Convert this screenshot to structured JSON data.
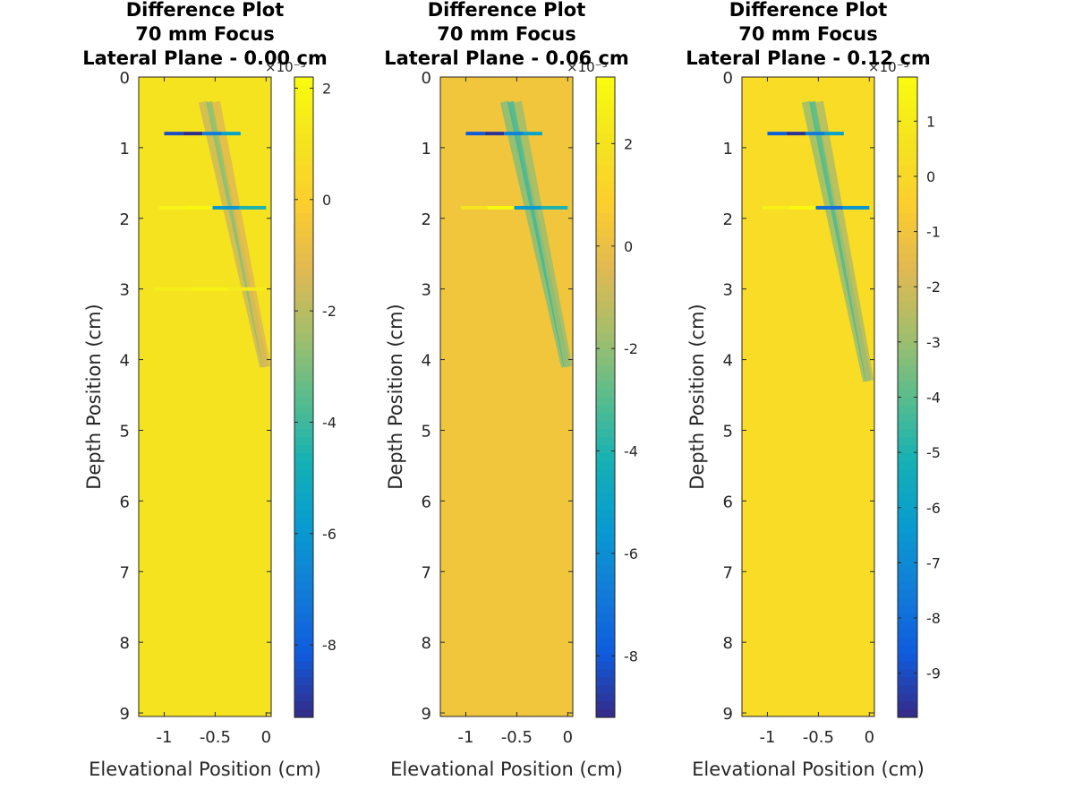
{
  "chart_data": [
    {
      "type": "heatmap",
      "title_lines": [
        "Difference Plot",
        "70 mm Focus",
        "Lateral Plane - 0.00 cm"
      ],
      "xlabel": "Elevational Position (cm)",
      "ylabel": "Depth Position (cm)",
      "xlim": [
        -1.25,
        0.05
      ],
      "ylim": [
        0,
        9.05
      ],
      "xticks": [
        -1,
        -0.5,
        0
      ],
      "xtick_labels": [
        "-1",
        "-0.5",
        "0"
      ],
      "yticks": [
        0,
        1,
        2,
        3,
        4,
        5,
        6,
        7,
        8,
        9
      ],
      "ytick_labels": [
        "0",
        "1",
        "2",
        "3",
        "4",
        "5",
        "6",
        "7",
        "8",
        "9"
      ],
      "colorbar": {
        "exponent_label": "×10⁻³",
        "clim": [
          -9.3,
          2.2
        ],
        "ticks": [
          2,
          0,
          -2,
          -4,
          -6,
          -8
        ],
        "tick_labels": [
          "2",
          "0",
          "-2",
          "-4",
          "-6",
          "-8"
        ]
      },
      "background_value": 1.0,
      "features": {
        "diagonal_band": {
          "x_start": -0.62,
          "y_start": 0.35,
          "x_end": -0.02,
          "y_end": 4.1,
          "value": -1.6
        },
        "streaks": [
          {
            "y": 0.8,
            "x_from": -1.0,
            "x_to": -0.25,
            "values": [
              -8.5,
              -9.2,
              -7.0,
              -5.5
            ]
          },
          {
            "y": 1.85,
            "x_from": -1.05,
            "x_to": 0.0,
            "values": [
              1.8,
              2.1,
              -6.0,
              -4.5
            ]
          },
          {
            "y": 3.0,
            "x_from": -1.1,
            "x_to": 0.0,
            "values": [
              1.5,
              1.8,
              1.4
            ]
          }
        ]
      }
    },
    {
      "type": "heatmap",
      "title_lines": [
        "Difference Plot",
        "70 mm Focus",
        "Lateral Plane - 0.06 cm"
      ],
      "xlabel": "Elevational Position (cm)",
      "ylabel": "Depth Position (cm)",
      "xlim": [
        -1.25,
        0.05
      ],
      "ylim": [
        0,
        9.05
      ],
      "xticks": [
        -1,
        -0.5,
        0
      ],
      "xtick_labels": [
        "-1",
        "-0.5",
        "0"
      ],
      "yticks": [
        0,
        1,
        2,
        3,
        4,
        5,
        6,
        7,
        8,
        9
      ],
      "ytick_labels": [
        "0",
        "1",
        "2",
        "3",
        "4",
        "5",
        "6",
        "7",
        "8",
        "9"
      ],
      "colorbar": {
        "exponent_label": "×10⁻³",
        "clim": [
          -9.2,
          3.3
        ],
        "ticks": [
          2,
          0,
          -2,
          -4,
          -6,
          -8
        ],
        "tick_labels": [
          "2",
          "0",
          "-2",
          "-4",
          "-6",
          "-8"
        ]
      },
      "background_value": 0.3,
      "features": {
        "diagonal_band": {
          "x_start": -0.62,
          "y_start": 0.35,
          "x_end": -0.02,
          "y_end": 4.1,
          "value": -2.2
        },
        "streaks": [
          {
            "y": 0.8,
            "x_from": -1.0,
            "x_to": -0.25,
            "values": [
              -8.0,
              -9.0,
              -6.5,
              -5.0
            ]
          },
          {
            "y": 1.85,
            "x_from": -1.05,
            "x_to": 0.0,
            "values": [
              2.0,
              3.2,
              -5.5,
              -4.0
            ]
          }
        ]
      }
    },
    {
      "type": "heatmap",
      "title_lines": [
        "Difference Plot",
        "70 mm Focus",
        "Lateral Plane - 0.12 cm"
      ],
      "xlabel": "Elevational Position (cm)",
      "ylabel": "Depth Position (cm)",
      "xlim": [
        -1.25,
        0.05
      ],
      "ylim": [
        0,
        9.05
      ],
      "xticks": [
        -1,
        -0.5,
        0
      ],
      "xtick_labels": [
        "-1",
        "-0.5",
        "0"
      ],
      "yticks": [
        0,
        1,
        2,
        3,
        4,
        5,
        6,
        7,
        8,
        9
      ],
      "ytick_labels": [
        "0",
        "1",
        "2",
        "3",
        "4",
        "5",
        "6",
        "7",
        "8",
        "9"
      ],
      "colorbar": {
        "exponent_label": "×10⁻³",
        "clim": [
          -9.8,
          1.8
        ],
        "ticks": [
          1,
          0,
          -1,
          -2,
          -3,
          -4,
          -5,
          -6,
          -7,
          -8,
          -9
        ],
        "tick_labels": [
          "1",
          "0",
          "-1",
          "-2",
          "-3",
          "-4",
          "-5",
          "-6",
          "-7",
          "-8",
          "-9"
        ]
      },
      "background_value": 0.2,
      "features": {
        "diagonal_band": {
          "x_start": -0.62,
          "y_start": 0.35,
          "x_end": -0.02,
          "y_end": 4.3,
          "value": -3.0
        },
        "streaks": [
          {
            "y": 0.8,
            "x_from": -1.0,
            "x_to": -0.25,
            "values": [
              -8.5,
              -9.6,
              -7.5,
              -6.0
            ]
          },
          {
            "y": 1.85,
            "x_from": -1.05,
            "x_to": 0.0,
            "values": [
              1.2,
              1.7,
              -8.0,
              -6.5
            ]
          }
        ]
      }
    }
  ]
}
